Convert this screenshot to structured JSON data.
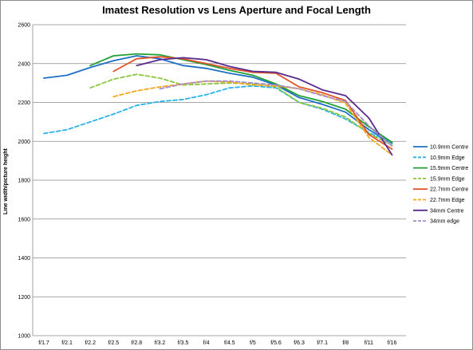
{
  "chart_data": {
    "type": "line",
    "title": "Imatest Resolution vs Lens Aperture and Focal Length",
    "xlabel": "",
    "ylabel": "Line width/picture height",
    "ylim": [
      1000,
      2600
    ],
    "yticks": [
      1000,
      1200,
      1400,
      1600,
      1800,
      2000,
      2200,
      2400,
      2600
    ],
    "categories": [
      "f/1.7",
      "f/2.1",
      "f/2.2",
      "f/2.5",
      "f/2.8",
      "f/3.2",
      "f/3.5",
      "f/4",
      "f/4.5",
      "f/5",
      "f/5.6",
      "f/6.3",
      "f/7.1",
      "f/8",
      "f/11",
      "f/16"
    ],
    "grid": true,
    "legend_position": "right",
    "series": [
      {
        "name": "10.9mm Centre",
        "color": "#1f6fc5",
        "dash": false,
        "values": [
          2325,
          2340,
          2380,
          2415,
          2440,
          2425,
          2390,
          2375,
          2350,
          2330,
          2290,
          2225,
          2190,
          2150,
          2060,
          1990
        ]
      },
      {
        "name": "10.9mm Edge",
        "color": "#2ab3e6",
        "dash": true,
        "values": [
          2040,
          2060,
          2100,
          2140,
          2185,
          2205,
          2215,
          2240,
          2275,
          2285,
          2275,
          2200,
          2165,
          2115,
          2045,
          1995
        ]
      },
      {
        "name": "15.9mm Centre",
        "color": "#22a035",
        "dash": false,
        "values": [
          null,
          null,
          2390,
          2440,
          2450,
          2445,
          2420,
          2395,
          2365,
          2340,
          2295,
          2235,
          2205,
          2165,
          2075,
          1995
        ]
      },
      {
        "name": "15.9mm Edge",
        "color": "#8cc63f",
        "dash": true,
        "values": [
          null,
          null,
          2275,
          2320,
          2345,
          2325,
          2290,
          2295,
          2300,
          2295,
          2280,
          2200,
          2170,
          2125,
          2040,
          1980
        ]
      },
      {
        "name": "22.7mm Centre",
        "color": "#e0532a",
        "dash": false,
        "values": [
          null,
          null,
          null,
          2360,
          2425,
          2435,
          2425,
          2400,
          2375,
          2355,
          2350,
          2280,
          2250,
          2210,
          2035,
          1960
        ]
      },
      {
        "name": "22.7mm Edge",
        "color": "#f5a81c",
        "dash": true,
        "values": [
          null,
          null,
          null,
          2230,
          2260,
          2280,
          2295,
          2310,
          2305,
          2290,
          2285,
          2270,
          2240,
          2195,
          2020,
          1930
        ]
      },
      {
        "name": "34mm Centre",
        "color": "#5a2a8c",
        "dash": false,
        "values": [
          null,
          null,
          null,
          null,
          2390,
          2420,
          2430,
          2420,
          2385,
          2360,
          2355,
          2320,
          2265,
          2235,
          2120,
          1930
        ]
      },
      {
        "name": "34mm edge",
        "color": "#a58cc8",
        "dash": true,
        "values": [
          null,
          null,
          null,
          null,
          null,
          2270,
          2295,
          2310,
          2310,
          2300,
          2290,
          2270,
          2235,
          2205,
          2080,
          1975
        ]
      }
    ]
  }
}
